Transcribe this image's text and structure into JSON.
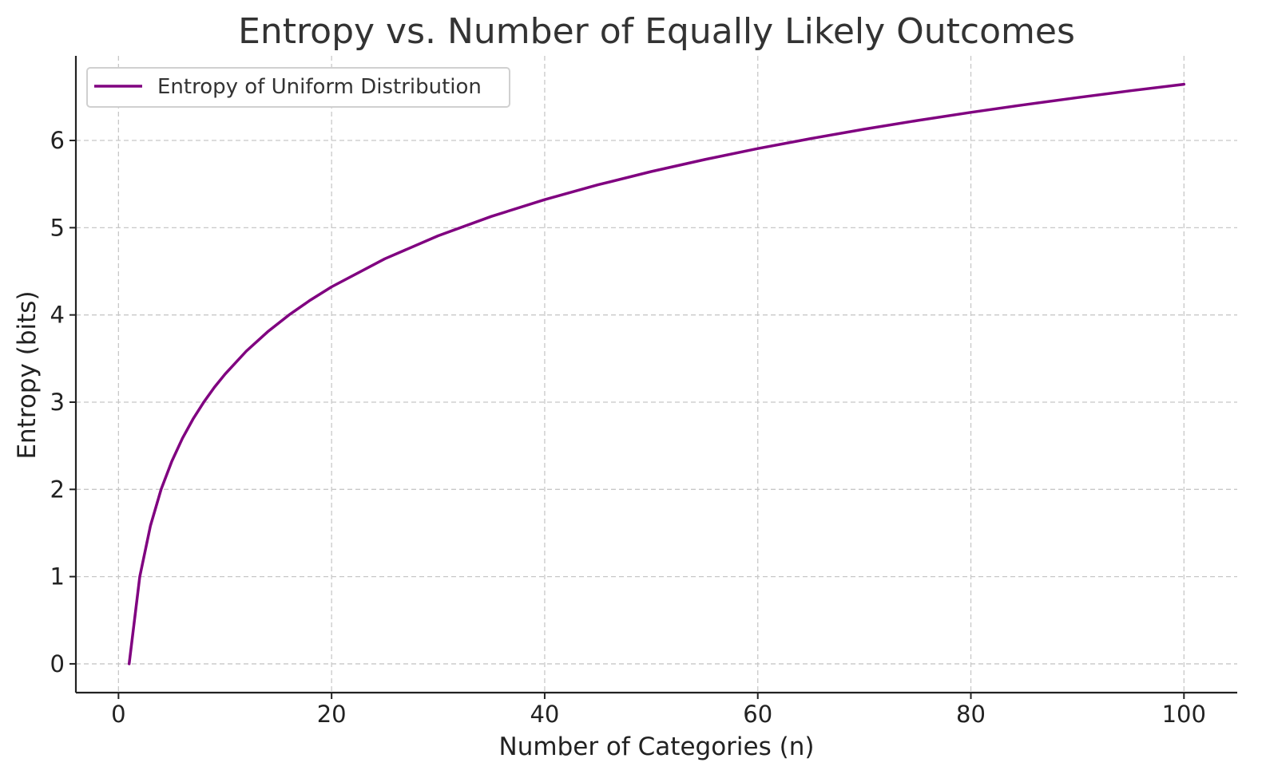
{
  "chart_data": {
    "type": "line",
    "title": "Entropy vs. Number of Equally Likely Outcomes",
    "xlabel": "Number of Categories (n)",
    "ylabel": "Entropy (bits)",
    "xlim": [
      -4,
      105
    ],
    "ylim": [
      -0.33,
      6.97
    ],
    "xticks": [
      0,
      20,
      40,
      60,
      80,
      100
    ],
    "yticks": [
      0,
      1,
      2,
      3,
      4,
      5,
      6
    ],
    "grid": true,
    "legend_position": "top-left",
    "series": [
      {
        "name": "Entropy of Uniform Distribution",
        "color": "#800080",
        "x": [
          1,
          2,
          3,
          4,
          5,
          6,
          7,
          8,
          9,
          10,
          12,
          14,
          16,
          18,
          20,
          25,
          30,
          35,
          40,
          45,
          50,
          55,
          60,
          65,
          70,
          75,
          80,
          85,
          90,
          95,
          100
        ],
        "y": [
          0,
          1.0,
          1.585,
          2.0,
          2.322,
          2.585,
          2.807,
          3.0,
          3.17,
          3.322,
          3.585,
          3.807,
          4.0,
          4.17,
          4.322,
          4.644,
          4.907,
          5.129,
          5.322,
          5.492,
          5.644,
          5.781,
          5.907,
          6.022,
          6.129,
          6.229,
          6.322,
          6.409,
          6.492,
          6.57,
          6.644
        ]
      }
    ]
  }
}
